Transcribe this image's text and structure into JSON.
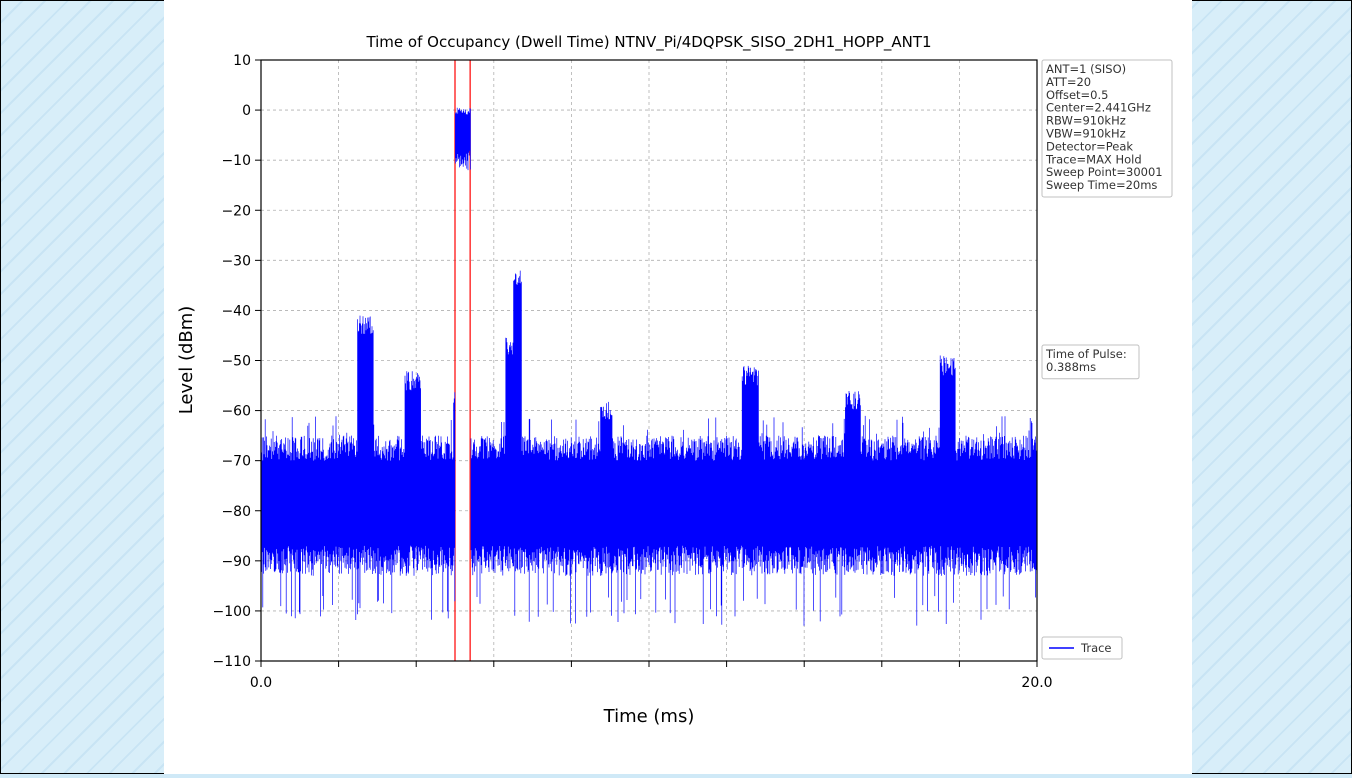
{
  "chart_data": {
    "type": "line",
    "title": "Time of Occupancy (Dwell Time) NTNV_Pi/4DQPSK_SISO_2DH1_HOPP_ANT1",
    "xlabel": "Time (ms)",
    "ylabel": "Level (dBm)",
    "xlim": [
      0.0,
      20.0
    ],
    "ylim": [
      -110,
      10
    ],
    "x_tick_labels": [
      "0.0",
      "20.0"
    ],
    "y_ticks": [
      10,
      0,
      -10,
      -20,
      -30,
      -40,
      -50,
      -60,
      -70,
      -80,
      -90,
      -100,
      -110
    ],
    "y_tick_labels": [
      "10",
      "0",
      "−10",
      "−20",
      "−30",
      "−40",
      "−50",
      "−60",
      "−70",
      "−80",
      "−90",
      "−100",
      "−110"
    ],
    "grid": true,
    "legend_position": "lower-right",
    "series": [
      {
        "name": "Trace",
        "color": "#0000ff",
        "baseline_dBm": -76,
        "noise_floor_max": [
          -65,
          -87
        ],
        "bursts": [
          {
            "start_ms": 2.48,
            "end_ms": 2.9,
            "peak_dBm": -41
          },
          {
            "start_ms": 3.7,
            "end_ms": 4.12,
            "peak_dBm": -52
          },
          {
            "start_ms": 4.95,
            "end_ms": 5.35,
            "peak_dBm": -56
          },
          {
            "start_ms": 5.0,
            "end_ms": 5.4,
            "peak_dBm": 0.5
          },
          {
            "start_ms": 6.3,
            "end_ms": 6.55,
            "peak_dBm": -45
          },
          {
            "start_ms": 6.5,
            "end_ms": 6.72,
            "peak_dBm": -32
          },
          {
            "start_ms": 8.75,
            "end_ms": 9.05,
            "peak_dBm": -58
          },
          {
            "start_ms": 12.4,
            "end_ms": 12.82,
            "peak_dBm": -51
          },
          {
            "start_ms": 15.05,
            "end_ms": 15.45,
            "peak_dBm": -56
          },
          {
            "start_ms": 17.5,
            "end_ms": 17.9,
            "peak_dBm": -49
          }
        ]
      }
    ],
    "markers": [
      {
        "x_ms": 5.0,
        "color": "#ff0000"
      },
      {
        "x_ms": 5.39,
        "color": "#ff0000"
      }
    ],
    "annotations": [
      {
        "lines": [
          "ANT=1 (SISO)",
          "ATT=20",
          "Offset=0.5",
          "Center=2.441GHz",
          "RBW=910kHz",
          "VBW=910kHz",
          "Detector=Peak",
          "Trace=MAX Hold",
          "Sweep Point=30001",
          "Sweep Time=20ms"
        ]
      },
      {
        "lines": [
          "Time of Pulse:",
          "0.388ms"
        ]
      }
    ],
    "legend": [
      {
        "label": "Trace",
        "color": "#0000ff"
      }
    ]
  }
}
